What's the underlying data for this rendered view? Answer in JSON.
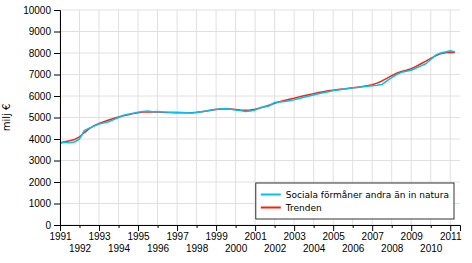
{
  "chart_data": {
    "type": "line",
    "ylabel": "milj €",
    "x": [
      1991,
      1991.25,
      1991.5,
      1991.75,
      1992,
      1992.25,
      1992.5,
      1992.75,
      1993,
      1993.25,
      1993.5,
      1993.75,
      1994,
      1994.25,
      1994.5,
      1994.75,
      1995,
      1995.25,
      1995.5,
      1995.75,
      1996,
      1996.25,
      1996.5,
      1996.75,
      1997,
      1997.25,
      1997.5,
      1997.75,
      1998,
      1998.25,
      1998.5,
      1998.75,
      1999,
      1999.25,
      1999.5,
      1999.75,
      2000,
      2000.25,
      2000.5,
      2000.75,
      2001,
      2001.25,
      2001.5,
      2001.75,
      2002,
      2002.25,
      2002.5,
      2002.75,
      2003,
      2003.25,
      2003.5,
      2003.75,
      2004,
      2004.25,
      2004.5,
      2004.75,
      2005,
      2005.25,
      2005.5,
      2005.75,
      2006,
      2006.25,
      2006.5,
      2006.75,
      2007,
      2007.25,
      2007.5,
      2007.75,
      2008,
      2008.25,
      2008.5,
      2008.75,
      2009,
      2009.25,
      2009.5,
      2009.75,
      2010,
      2010.25,
      2010.5,
      2010.75,
      2011,
      2011.25
    ],
    "series": [
      {
        "name": "Sociala förmåner andra än in natura",
        "color": "#00bfff",
        "values": [
          3800,
          3850,
          3820,
          3860,
          4000,
          4400,
          4500,
          4600,
          4700,
          4750,
          4800,
          4900,
          5000,
          5100,
          5150,
          5200,
          5250,
          5280,
          5300,
          5270,
          5280,
          5260,
          5250,
          5230,
          5240,
          5230,
          5220,
          5210,
          5230,
          5270,
          5300,
          5350,
          5380,
          5400,
          5420,
          5380,
          5350,
          5320,
          5280,
          5300,
          5350,
          5450,
          5500,
          5550,
          5700,
          5720,
          5740,
          5780,
          5820,
          5880,
          5940,
          6000,
          6050,
          6100,
          6150,
          6200,
          6250,
          6280,
          6310,
          6350,
          6380,
          6400,
          6430,
          6450,
          6480,
          6500,
          6530,
          6700,
          6850,
          7000,
          7100,
          7150,
          7200,
          7300,
          7400,
          7500,
          7700,
          7900,
          8000,
          8050,
          8100,
          8050
        ]
      },
      {
        "name": "Trenden",
        "color": "#ff2200",
        "values": [
          3820,
          3870,
          3920,
          3980,
          4100,
          4300,
          4480,
          4620,
          4720,
          4800,
          4880,
          4950,
          5020,
          5080,
          5130,
          5180,
          5220,
          5250,
          5270,
          5260,
          5250,
          5240,
          5235,
          5230,
          5225,
          5220,
          5220,
          5225,
          5240,
          5270,
          5300,
          5340,
          5370,
          5390,
          5400,
          5390,
          5370,
          5350,
          5340,
          5350,
          5380,
          5440,
          5510,
          5580,
          5660,
          5730,
          5790,
          5850,
          5900,
          5960,
          6010,
          6060,
          6110,
          6160,
          6200,
          6240,
          6270,
          6300,
          6320,
          6350,
          6380,
          6410,
          6440,
          6480,
          6520,
          6600,
          6700,
          6820,
          6950,
          7060,
          7140,
          7200,
          7270,
          7380,
          7500,
          7620,
          7750,
          7870,
          7960,
          8010,
          8030,
          8020
        ]
      }
    ],
    "xlim": [
      1991.0,
      2011.5
    ],
    "xticks": [
      1991,
      1992,
      1993,
      1994,
      1995,
      1996,
      1997,
      1998,
      1999,
      2000,
      2001,
      2002,
      2003,
      2004,
      2005,
      2006,
      2007,
      2008,
      2009,
      2010,
      2011
    ],
    "ylim": [
      0,
      10000
    ],
    "yticks": [
      0,
      1000,
      2000,
      3000,
      4000,
      5000,
      6000,
      7000,
      8000,
      9000,
      10000
    ],
    "grid": true,
    "legend": "lower right"
  }
}
